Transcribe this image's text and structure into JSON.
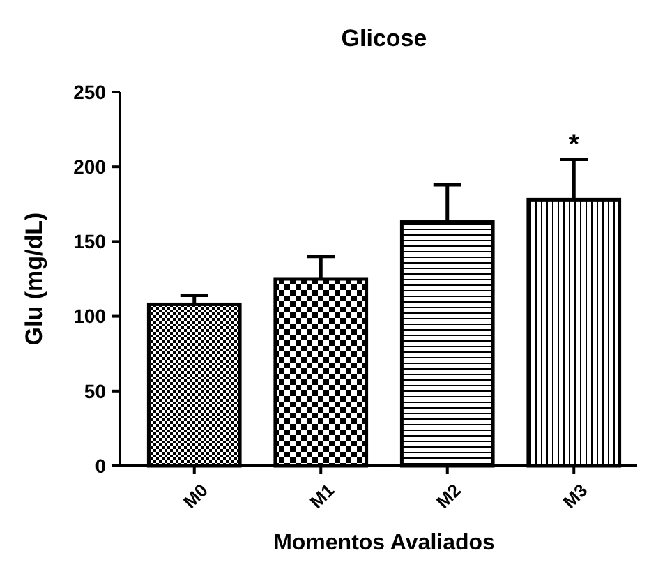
{
  "chart_data": {
    "type": "bar",
    "title": "Glicose",
    "xlabel": "Momentos Avaliados",
    "ylabel": "Glu (mg/dL)",
    "categories": [
      "M0",
      "M1",
      "M2",
      "M3"
    ],
    "values": [
      108,
      125,
      163,
      178
    ],
    "errors": [
      [
        108,
        114
      ],
      [
        125,
        140
      ],
      [
        163,
        188
      ],
      [
        178,
        205
      ]
    ],
    "color": "#000000",
    "ylim": [
      0,
      250
    ],
    "yticks": [
      0,
      50,
      100,
      150,
      200,
      250
    ],
    "annotations": [
      {
        "text": "*",
        "x": "M3",
        "y": 205
      }
    ]
  }
}
